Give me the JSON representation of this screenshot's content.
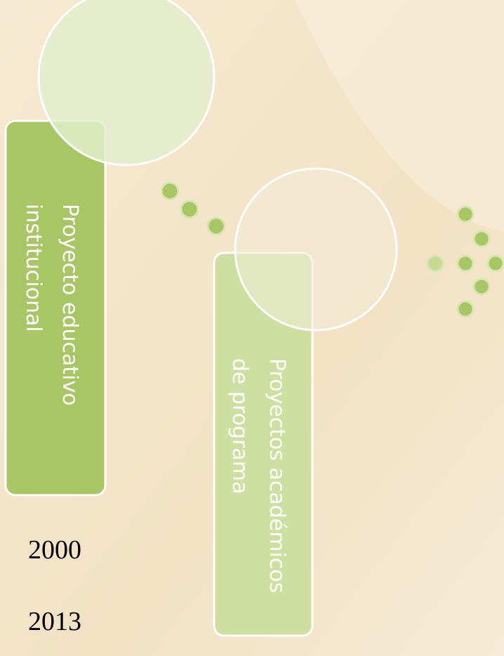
{
  "boxes": [
    {
      "lines": [
        "Proyecto educativo",
        "institucional"
      ]
    },
    {
      "lines": [
        "Proyectos académicos",
        "de programa"
      ]
    }
  ],
  "years": [
    "2000",
    "2013"
  ]
}
